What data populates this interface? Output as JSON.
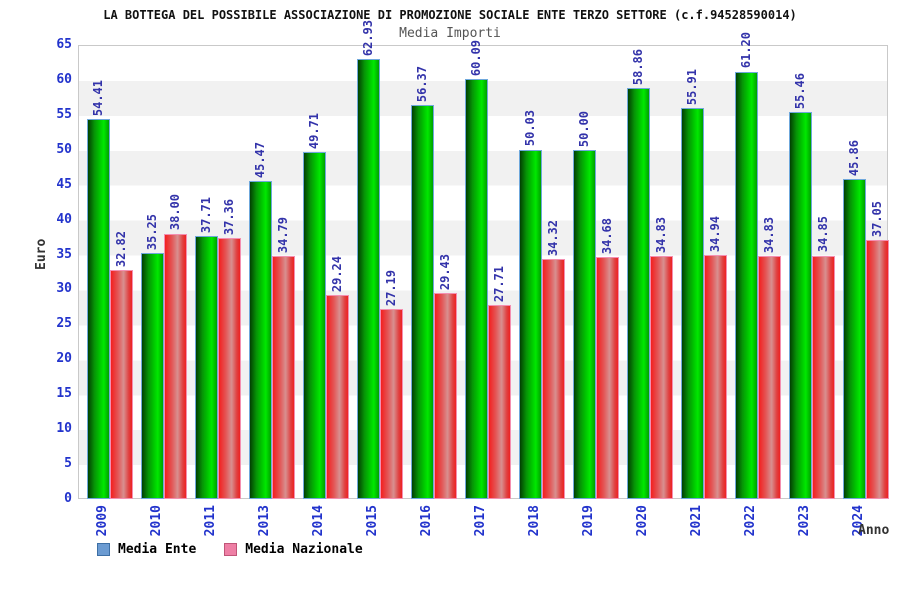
{
  "header": {
    "title": "LA BOTTEGA DEL POSSIBILE ASSOCIAZIONE DI PROMOZIONE SOCIALE ENTE TERZO SETTORE (c.f.94528590014)",
    "subtitle": "Media Importi"
  },
  "chart_data": {
    "type": "bar",
    "title": "Media Importi",
    "xlabel": "Anno",
    "ylabel": "Euro",
    "ylim": [
      0,
      65
    ],
    "ytick_step": 5,
    "yticks": [
      0,
      5,
      10,
      15,
      20,
      25,
      30,
      35,
      40,
      45,
      50,
      55,
      60,
      65
    ],
    "grid": "horizontal-alternating-bands",
    "legend_position": "bottom-left",
    "categories": [
      "2009",
      "2010",
      "2011",
      "2013",
      "2014",
      "2015",
      "2016",
      "2017",
      "2018",
      "2019",
      "2020",
      "2021",
      "2022",
      "2023",
      "2024"
    ],
    "series": [
      {
        "name": "Media Ente",
        "legend_color": "#6b9bd2",
        "bar_color": "green-gradient",
        "values": [
          54.41,
          35.25,
          37.71,
          45.47,
          49.71,
          62.93,
          56.37,
          60.09,
          50.03,
          50.0,
          58.86,
          55.91,
          61.2,
          55.46,
          45.86
        ]
      },
      {
        "name": "Media Nazionale",
        "legend_color": "#ee7fa5",
        "bar_color": "red-gradient",
        "values": [
          32.82,
          38.0,
          37.36,
          34.79,
          29.24,
          27.19,
          29.43,
          27.71,
          34.32,
          34.68,
          34.83,
          34.94,
          34.83,
          34.85,
          37.05
        ]
      }
    ]
  },
  "colors": {
    "value_label": "#3333aa",
    "axis_tick_label": "#2233cc",
    "band_gray": "#f1f1f1",
    "plot_border": "#c9c9c9",
    "green_bar_border": "#6fa8dc",
    "red_bar_border": "#f48fb1"
  }
}
